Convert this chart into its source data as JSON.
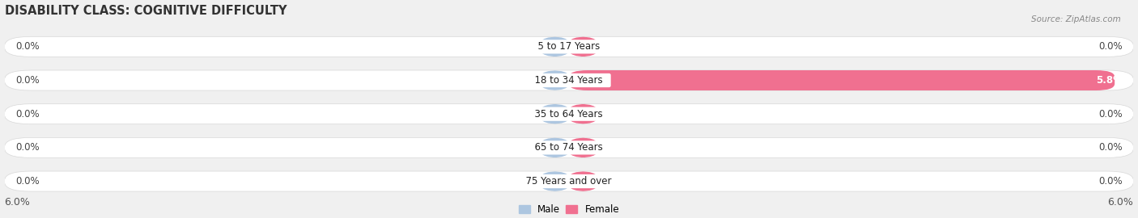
{
  "title": "DISABILITY CLASS: COGNITIVE DIFFICULTY",
  "source": "Source: ZipAtlas.com",
  "categories": [
    "5 to 17 Years",
    "18 to 34 Years",
    "35 to 64 Years",
    "65 to 74 Years",
    "75 Years and over"
  ],
  "male_values": [
    0.0,
    0.0,
    0.0,
    0.0,
    0.0
  ],
  "female_values": [
    0.0,
    5.8,
    0.0,
    0.0,
    0.0
  ],
  "male_color": "#adc6e0",
  "female_color": "#f07090",
  "max_value": 6.0,
  "bg_color": "#f0f0f0",
  "bar_bg_color": "#ffffff",
  "title_fontsize": 10.5,
  "label_fontsize": 8.5,
  "tick_fontsize": 9,
  "source_fontsize": 7.5
}
